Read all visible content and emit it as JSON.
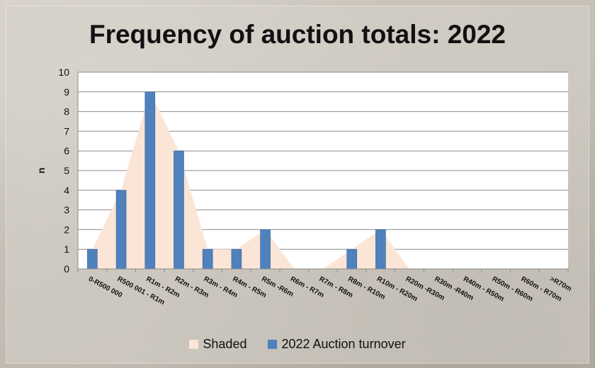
{
  "chart_data": {
    "type": "bar",
    "title": "Frequency of auction totals: 2022",
    "xlabel": "",
    "ylabel": "n",
    "ylim": [
      0,
      10
    ],
    "yticks": [
      "0",
      "1",
      "2",
      "3",
      "4",
      "5",
      "6",
      "7",
      "8",
      "9",
      "10"
    ],
    "grid": true,
    "legend_position": "bottom",
    "categories": [
      "0-R500 000",
      "R500 001 - R1m",
      "R1m - R2m",
      "R2m - R3m",
      "R3m - R4m",
      "R4m - R5m",
      "R5m -R6m",
      "R6m - R7m",
      "R7m - R8m",
      "R8m - R10m",
      "R10m - R20m",
      "R20m -R30m",
      "R30m -R40m",
      "R40m - R50m",
      "R50m - R60m",
      "R60m - R70m",
      ">R70m"
    ],
    "series": [
      {
        "name": "Shaded",
        "kind": "area",
        "color": "#fbe5d6",
        "values": [
          1,
          4,
          9,
          6,
          1,
          1,
          2,
          0,
          0,
          1,
          2,
          0,
          0,
          0,
          0,
          0,
          0
        ]
      },
      {
        "name": "2022 Auction turnover",
        "kind": "bar",
        "color": "#4f81bd",
        "values": [
          1,
          4,
          9,
          6,
          1,
          1,
          2,
          0,
          0,
          1,
          2,
          0,
          0,
          0,
          0,
          0,
          0
        ]
      }
    ]
  }
}
